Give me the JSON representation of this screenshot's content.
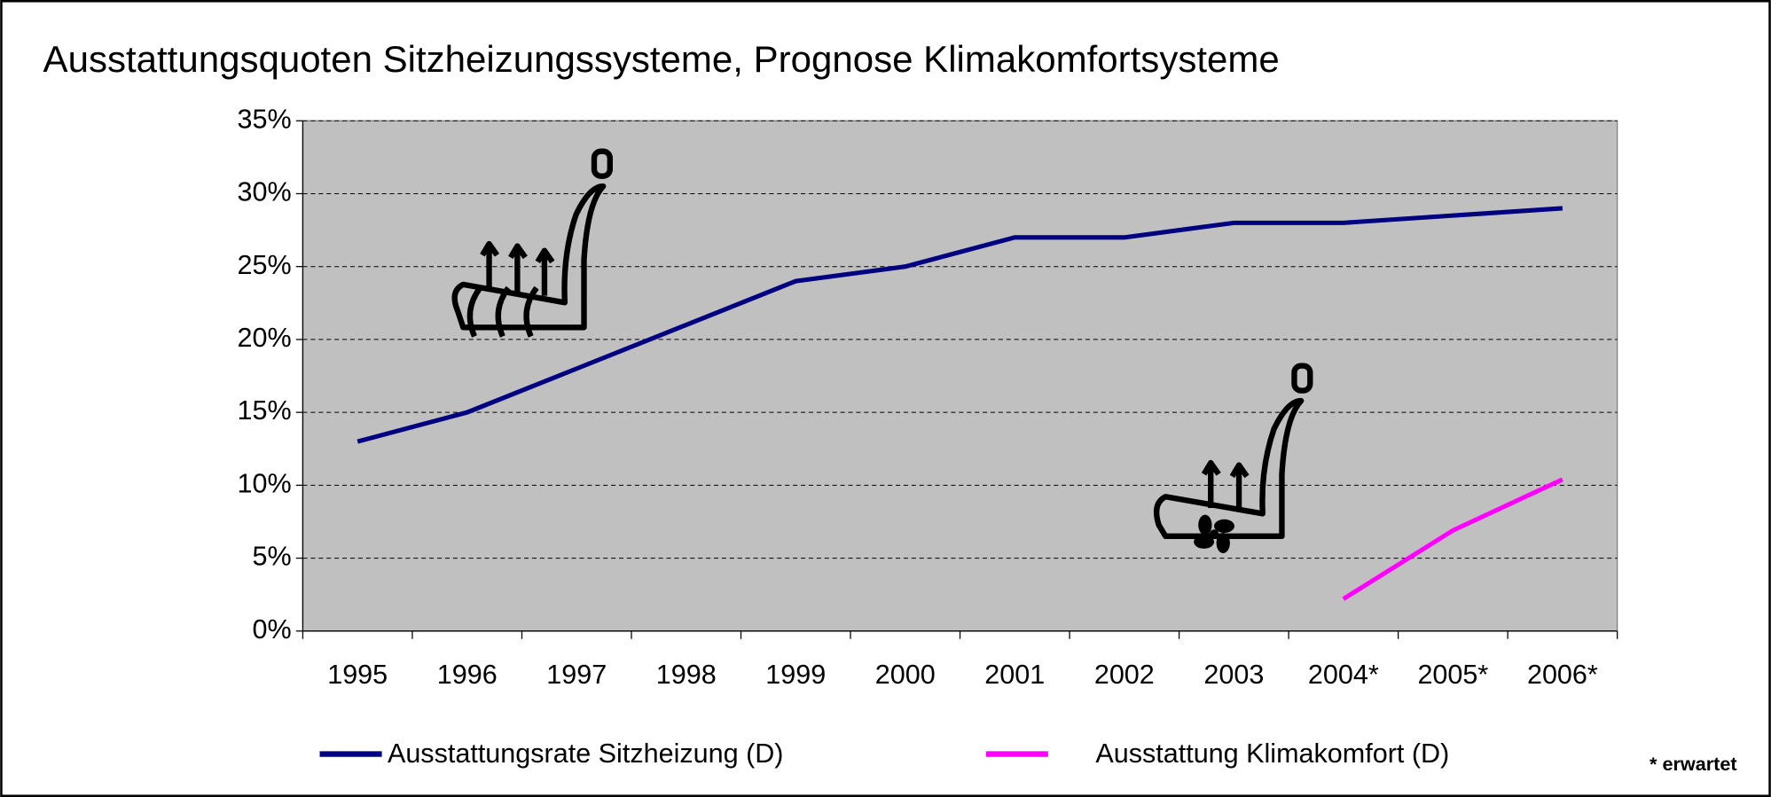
{
  "chart_data": {
    "type": "line",
    "title": "Ausstattungsquoten Sitzheizungssysteme, Prognose Klimakomfortsysteme",
    "categories": [
      "1995",
      "1996",
      "1997",
      "1998",
      "1999",
      "2000",
      "2001",
      "2002",
      "2003",
      "2004*",
      "2005*",
      "2006*"
    ],
    "series": [
      {
        "name": "Ausstattungsrate Sitzheizung (D)",
        "color": "#000080",
        "values": [
          13,
          15,
          18,
          21,
          24,
          25,
          27,
          27,
          28,
          28,
          28.5,
          29
        ]
      },
      {
        "name": "Ausstattung Klimakomfort (D)",
        "color": "#ff00ff",
        "values": [
          null,
          null,
          null,
          null,
          null,
          null,
          null,
          null,
          null,
          2.2,
          6.9,
          10.4
        ]
      }
    ],
    "ylim": [
      0,
      35
    ],
    "yticks": [
      {
        "value": 0,
        "label": "0%"
      },
      {
        "value": 5,
        "label": "5%"
      },
      {
        "value": 10,
        "label": "10%"
      },
      {
        "value": 15,
        "label": "15%"
      },
      {
        "value": 20,
        "label": "20%"
      },
      {
        "value": 25,
        "label": "25%"
      },
      {
        "value": 30,
        "label": "30%"
      },
      {
        "value": 35,
        "label": "35%"
      }
    ],
    "grid": true,
    "plot_background": "#c0c0c0",
    "legend": "bottom",
    "footnote": "* erwartet"
  }
}
